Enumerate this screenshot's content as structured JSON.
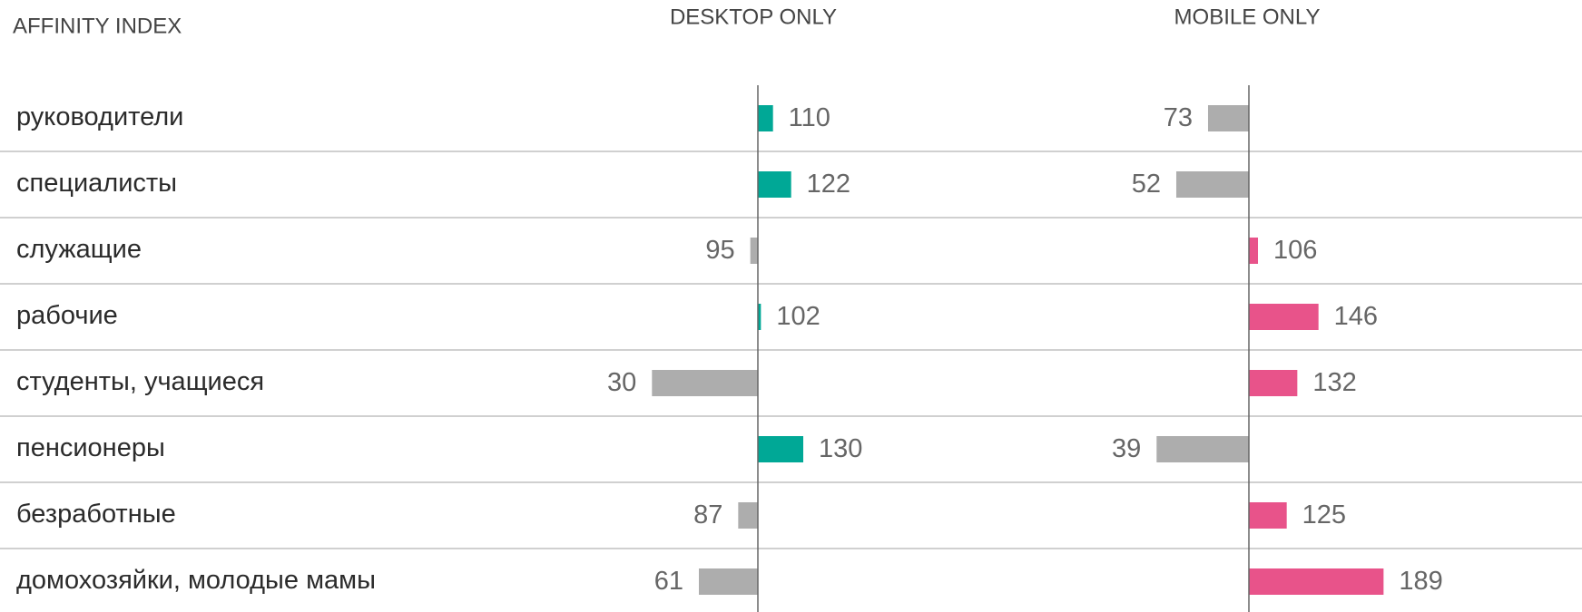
{
  "chart_data": {
    "type": "bar",
    "title": "AFFINITY INDEX",
    "categories": [
      "руководители",
      "специалисты",
      "служащие",
      "рабочие",
      "студенты, учащиеся",
      "пенсионеры",
      "безработные",
      "домохозяйки, молодые мамы"
    ],
    "baseline": 100,
    "below_color": "#adadad",
    "series": [
      {
        "name": "DESKTOP ONLY",
        "color": "#00a896",
        "values": [
          110,
          122,
          95,
          102,
          30,
          130,
          87,
          61
        ]
      },
      {
        "name": "MOBILE ONLY",
        "color": "#e8538a",
        "values": [
          73,
          52,
          106,
          146,
          132,
          39,
          125,
          189
        ]
      }
    ]
  }
}
